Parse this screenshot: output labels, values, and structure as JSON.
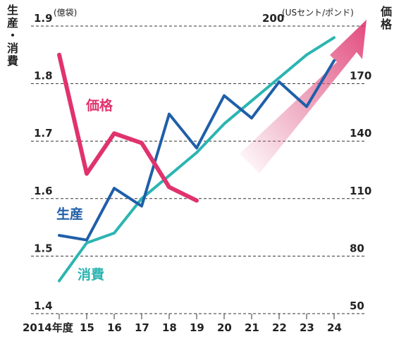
{
  "chart_data": {
    "type": "line",
    "x": [
      "2014年度",
      "15",
      "16",
      "17",
      "18",
      "19",
      "20",
      "21",
      "22",
      "23",
      "24"
    ],
    "left_axis": {
      "title": "生産・消費",
      "unit": "(億袋)",
      "ylim": [
        1.4,
        1.9
      ],
      "ticks": [
        "1.9",
        "1.8",
        "1.7",
        "1.6",
        "1.5",
        "1.4"
      ]
    },
    "right_axis": {
      "title": "価格",
      "unit": "(USセント/ポンド)",
      "ylim": [
        50,
        200
      ],
      "ticks": [
        "200",
        "170",
        "140",
        "110",
        "80",
        "50"
      ]
    },
    "grid": "dashed horizontal",
    "series": [
      {
        "name": "価格",
        "axis": "right",
        "color": "#e0336e",
        "values": [
          185,
          123,
          144,
          139,
          116,
          109,
          null,
          null,
          null,
          null,
          null
        ]
      },
      {
        "name": "生産",
        "axis": "left",
        "color": "#1f5fa8",
        "values": [
          1.536,
          1.528,
          1.618,
          1.587,
          1.747,
          1.688,
          1.779,
          1.74,
          1.803,
          1.76,
          1.84
        ]
      },
      {
        "name": "消費",
        "axis": "left",
        "color": "#2bb5b2",
        "values": [
          1.457,
          1.523,
          1.54,
          1.6,
          1.64,
          1.68,
          1.73,
          1.77,
          1.81,
          1.85,
          1.88
        ]
      }
    ],
    "annotation": "upward trend arrow (forecast)"
  }
}
